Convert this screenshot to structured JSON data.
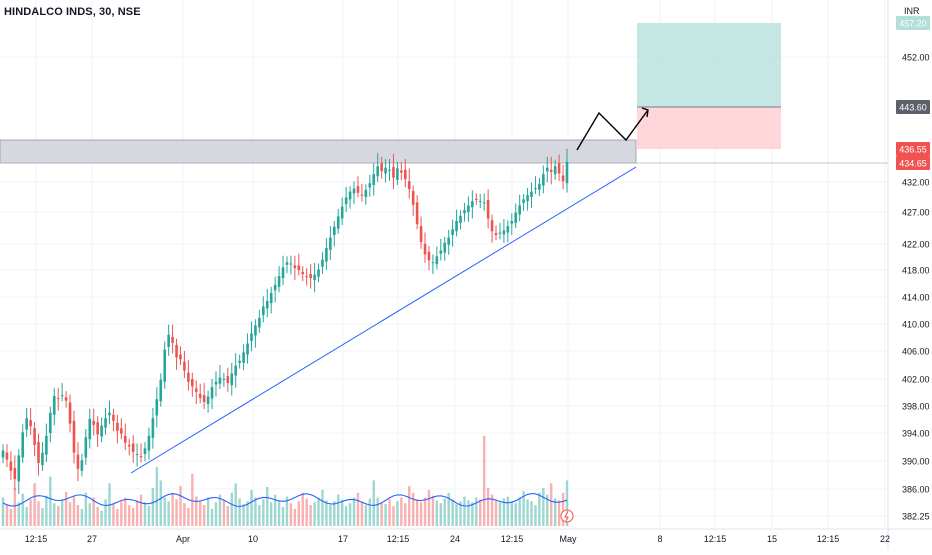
{
  "header": {
    "title": "HINDALCO INDS, 30, NSE",
    "currency": "INR"
  },
  "colors": {
    "up": "#26a69a",
    "down": "#ef5350",
    "trendline": "#2962ff",
    "rsi": "#2962ff",
    "profit_zone": "#b2dfdb",
    "loss_zone": "#ffcdd2",
    "resistance_zone": "#d1d4dc",
    "label_current": "#ef5350",
    "label_target": "#5d606b",
    "label_top": "#b2dfdb"
  },
  "chart_data": {
    "type": "candlestick",
    "symbol": "HINDALCO INDS",
    "interval": "30",
    "exchange": "NSE",
    "y_ticks": [
      "452.00",
      "432.00",
      "427.00",
      "422.00",
      "418.00",
      "414.00",
      "410.00",
      "406.00",
      "402.00",
      "398.00",
      "394.00",
      "390.00",
      "386.00",
      "382.25"
    ],
    "x_ticks": [
      "12:15",
      "27",
      "Apr",
      "10",
      "17",
      "12:15",
      "24",
      "12:15",
      "May",
      "8",
      "12:15",
      "15",
      "12:15",
      "22"
    ],
    "price_labels": {
      "top": "457.20",
      "target": "443.60",
      "upper": "436.55",
      "current": "434.65"
    },
    "resistance_zone": [
      434.65,
      436.55
    ],
    "long_position": {
      "entry": 443.6,
      "target": 457.2,
      "stop": 436.55
    },
    "close_path": [
      391.5,
      390.2,
      388.6,
      387.4,
      390.8,
      394.1,
      396.2,
      395.0,
      392.3,
      389.7,
      391.2,
      393.6,
      397.0,
      399.5,
      399.1,
      399.6,
      398.8,
      395.4,
      391.2,
      388.9,
      390.1,
      393.4,
      396.1,
      395.2,
      393.8,
      395.1,
      396.2,
      397.0,
      395.8,
      394.3,
      393.9,
      392.6,
      392.1,
      391.3,
      391.0,
      390.6,
      391.8,
      393.6,
      396.2,
      399.0,
      401.9,
      406.2,
      408.4,
      407.2,
      405.1,
      404.8,
      403.2,
      401.6,
      400.9,
      400.1,
      399.2,
      398.6,
      399.4,
      400.8,
      401.6,
      402.2,
      402.0,
      401.4,
      402.8,
      403.9,
      404.6,
      405.8,
      407.1,
      408.6,
      409.8,
      410.9,
      412.6,
      413.4,
      414.6,
      415.8,
      417.1,
      418.4,
      419.2,
      419.0,
      418.3,
      418.0,
      417.4,
      417.0,
      416.8,
      417.3,
      418.1,
      419.6,
      421.4,
      423.0,
      424.7,
      426.3,
      427.9,
      429.4,
      430.4,
      430.9,
      430.2,
      429.8,
      430.7,
      431.8,
      433.1,
      434.2,
      433.5,
      434.0,
      433.7,
      432.6,
      433.9,
      433.3,
      432.4,
      430.8,
      428.2,
      425.1,
      422.3,
      420.4,
      419.5,
      419.2,
      420.1,
      421.0,
      422.2,
      423.0,
      424.3,
      425.6,
      426.4,
      427.3,
      428.1,
      428.8,
      429.0,
      428.8,
      428.6,
      426.0,
      424.0,
      423.4,
      423.8,
      424.1,
      424.8,
      425.6,
      426.9,
      428.1,
      429.1,
      429.8,
      430.4,
      431.0,
      431.7,
      433.1,
      434.0,
      433.4,
      434.2,
      433.2,
      432.1,
      434.8
    ],
    "volume_path": [
      30,
      22,
      18,
      40,
      25,
      34,
      20,
      28,
      45,
      26,
      19,
      32,
      52,
      24,
      21,
      28,
      36,
      25,
      31,
      22,
      18,
      35,
      24,
      30,
      20,
      16,
      28,
      45,
      23,
      18,
      26,
      30,
      22,
      19,
      27,
      33,
      25,
      21,
      40,
      62,
      48,
      30,
      26,
      35,
      28,
      42,
      24,
      19,
      55,
      31,
      26,
      22,
      30,
      18,
      25,
      33,
      27,
      21,
      35,
      45,
      29,
      23,
      26,
      38,
      30,
      22,
      28,
      41,
      25,
      33,
      27,
      20,
      31,
      24,
      18,
      26,
      35,
      29,
      22,
      25,
      30,
      38,
      27,
      22,
      26,
      33,
      28,
      21,
      24,
      30,
      35,
      26,
      22,
      29,
      48,
      30,
      25,
      23,
      28,
      21,
      26,
      30,
      24,
      42,
      35,
      28,
      25,
      30,
      38,
      32,
      27,
      24,
      29,
      35,
      28,
      23,
      26,
      31,
      27,
      25,
      30,
      28,
      95,
      40,
      33,
      27,
      25,
      29,
      31,
      26,
      24,
      30,
      37,
      28,
      26,
      22,
      35,
      40,
      33,
      45,
      29,
      27,
      35,
      48
    ]
  }
}
